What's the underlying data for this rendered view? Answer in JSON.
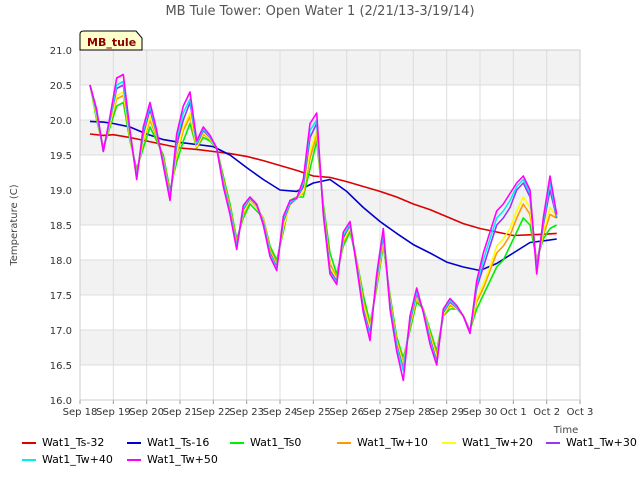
{
  "chart_data": {
    "type": "line",
    "title": "MB Tule Tower: Open Water 1 (2/21/13-3/19/14)",
    "site_label": "MB_tule",
    "xlabel": "Time",
    "ylabel": "Temperature (C)",
    "ylim": [
      16.0,
      21.0
    ],
    "yticks": [
      "16.0",
      "16.5",
      "17.0",
      "17.5",
      "18.0",
      "18.5",
      "19.0",
      "19.5",
      "20.0",
      "20.5",
      "21.0"
    ],
    "xlim": [
      0,
      15
    ],
    "xticks": [
      "Sep 18",
      "Sep 19",
      "Sep 20",
      "Sep 21",
      "Sep 22",
      "Sep 23",
      "Sep 24",
      "Sep 25",
      "Sep 26",
      "Sep 27",
      "Sep 28",
      "Sep 29",
      "Sep 30",
      "Oct 1",
      "Oct 2",
      "Oct 3"
    ],
    "series": [
      {
        "name": "Wat1_Ts-32",
        "color": "#dd0000",
        "x": [
          0.3,
          0.7,
          1.0,
          1.5,
          2.0,
          2.5,
          3.0,
          3.5,
          4.0,
          4.5,
          5.0,
          5.5,
          6.0,
          6.5,
          7.0,
          7.5,
          8.0,
          8.5,
          9.0,
          9.5,
          10.0,
          10.5,
          11.0,
          11.5,
          12.0,
          12.5,
          13.0,
          13.5,
          14.0,
          14.3
        ],
        "values": [
          19.8,
          19.78,
          19.79,
          19.75,
          19.7,
          19.65,
          19.6,
          19.58,
          19.55,
          19.52,
          19.48,
          19.42,
          19.35,
          19.28,
          19.2,
          19.18,
          19.12,
          19.05,
          18.98,
          18.9,
          18.8,
          18.72,
          18.62,
          18.52,
          18.45,
          18.4,
          18.35,
          18.36,
          18.37,
          18.38
        ]
      },
      {
        "name": "Wat1_Ts-16",
        "color": "#0000cc",
        "x": [
          0.3,
          0.7,
          1.0,
          1.5,
          2.0,
          2.5,
          3.0,
          3.5,
          4.0,
          4.5,
          5.0,
          5.5,
          6.0,
          6.5,
          7.0,
          7.5,
          8.0,
          8.5,
          9.0,
          9.5,
          10.0,
          10.5,
          11.0,
          11.5,
          12.0,
          12.5,
          13.0,
          13.5,
          14.0,
          14.3
        ],
        "values": [
          19.98,
          19.97,
          19.95,
          19.9,
          19.8,
          19.72,
          19.68,
          19.65,
          19.62,
          19.5,
          19.32,
          19.15,
          19.0,
          18.98,
          19.1,
          19.15,
          18.98,
          18.75,
          18.55,
          18.38,
          18.22,
          18.1,
          17.97,
          17.9,
          17.85,
          17.95,
          18.1,
          18.25,
          18.28,
          18.3
        ]
      },
      {
        "name": "Wat1_Ts0",
        "color": "#00ee00",
        "x": [
          0.3,
          0.5,
          0.7,
          0.9,
          1.1,
          1.3,
          1.5,
          1.7,
          1.9,
          2.1,
          2.3,
          2.5,
          2.7,
          2.9,
          3.1,
          3.3,
          3.5,
          3.7,
          3.9,
          4.1,
          4.3,
          4.5,
          4.7,
          4.9,
          5.1,
          5.3,
          5.5,
          5.7,
          5.9,
          6.1,
          6.3,
          6.5,
          6.7,
          6.9,
          7.1,
          7.3,
          7.5,
          7.7,
          7.9,
          8.1,
          8.3,
          8.5,
          8.7,
          8.9,
          9.1,
          9.3,
          9.5,
          9.7,
          9.9,
          10.1,
          10.3,
          10.5,
          10.7,
          10.9,
          11.1,
          11.3,
          11.5,
          11.7,
          11.9,
          12.1,
          12.3,
          12.5,
          12.7,
          12.9,
          13.1,
          13.3,
          13.5,
          13.7,
          13.9,
          14.1,
          14.3
        ],
        "values": [
          20.5,
          20.0,
          19.6,
          19.9,
          20.2,
          20.25,
          19.7,
          19.3,
          19.6,
          19.9,
          19.7,
          19.5,
          19.0,
          19.4,
          19.7,
          19.95,
          19.6,
          19.75,
          19.7,
          19.6,
          19.2,
          18.8,
          18.3,
          18.6,
          18.8,
          18.7,
          18.6,
          18.2,
          18.0,
          18.4,
          18.85,
          18.9,
          18.9,
          19.3,
          19.7,
          18.8,
          18.1,
          17.8,
          18.2,
          18.4,
          18.0,
          17.5,
          17.1,
          17.6,
          18.2,
          17.5,
          16.9,
          16.6,
          17.0,
          17.4,
          17.3,
          17.0,
          16.7,
          17.2,
          17.3,
          17.3,
          17.2,
          17.0,
          17.3,
          17.5,
          17.7,
          17.9,
          18.0,
          18.2,
          18.4,
          18.6,
          18.5,
          18.0,
          18.3,
          18.45,
          18.5
        ]
      },
      {
        "name": "Wat1_Tw+10",
        "color": "#ff9900",
        "x": [
          0.3,
          0.5,
          0.7,
          0.9,
          1.1,
          1.3,
          1.5,
          1.7,
          1.9,
          2.1,
          2.3,
          2.5,
          2.7,
          2.9,
          3.1,
          3.3,
          3.5,
          3.7,
          3.9,
          4.1,
          4.3,
          4.5,
          4.7,
          4.9,
          5.1,
          5.3,
          5.5,
          5.7,
          5.9,
          6.1,
          6.3,
          6.5,
          6.7,
          6.9,
          7.1,
          7.3,
          7.5,
          7.7,
          7.9,
          8.1,
          8.3,
          8.5,
          8.7,
          8.9,
          9.1,
          9.3,
          9.5,
          9.7,
          9.9,
          10.1,
          10.3,
          10.5,
          10.7,
          10.9,
          11.1,
          11.3,
          11.5,
          11.7,
          11.9,
          12.1,
          12.3,
          12.5,
          12.7,
          12.9,
          13.1,
          13.3,
          13.5,
          13.7,
          13.9,
          14.1,
          14.3
        ],
        "values": [
          20.5,
          20.05,
          19.6,
          19.95,
          20.3,
          20.35,
          19.75,
          19.25,
          19.7,
          20.0,
          19.75,
          19.45,
          18.95,
          19.5,
          19.85,
          20.05,
          19.6,
          19.8,
          19.72,
          19.6,
          19.15,
          18.75,
          18.25,
          18.65,
          18.85,
          18.75,
          18.6,
          18.15,
          17.95,
          18.45,
          18.8,
          18.9,
          18.95,
          19.45,
          19.8,
          18.75,
          17.95,
          17.75,
          18.25,
          18.45,
          18.0,
          17.4,
          17.05,
          17.65,
          18.25,
          17.45,
          16.85,
          16.55,
          17.05,
          17.45,
          17.3,
          16.95,
          16.65,
          17.2,
          17.35,
          17.3,
          17.2,
          17.0,
          17.4,
          17.6,
          17.85,
          18.1,
          18.2,
          18.35,
          18.6,
          18.8,
          18.65,
          18.0,
          18.35,
          18.65,
          18.6
        ]
      },
      {
        "name": "Wat1_Tw+20",
        "color": "#ffff00",
        "x": [
          0.3,
          0.5,
          0.7,
          0.9,
          1.1,
          1.3,
          1.5,
          1.7,
          1.9,
          2.1,
          2.3,
          2.5,
          2.7,
          2.9,
          3.1,
          3.3,
          3.5,
          3.7,
          3.9,
          4.1,
          4.3,
          4.5,
          4.7,
          4.9,
          5.1,
          5.3,
          5.5,
          5.7,
          5.9,
          6.1,
          6.3,
          6.5,
          6.7,
          6.9,
          7.1,
          7.3,
          7.5,
          7.7,
          7.9,
          8.1,
          8.3,
          8.5,
          8.7,
          8.9,
          9.1,
          9.3,
          9.5,
          9.7,
          9.9,
          10.1,
          10.3,
          10.5,
          10.7,
          10.9,
          11.1,
          11.3,
          11.5,
          11.7,
          11.9,
          12.1,
          12.3,
          12.5,
          12.7,
          12.9,
          13.1,
          13.3,
          13.5,
          13.7,
          13.9,
          14.1,
          14.3
        ],
        "values": [
          20.5,
          20.05,
          19.58,
          19.95,
          20.35,
          20.4,
          19.75,
          19.22,
          19.72,
          20.05,
          19.78,
          19.42,
          18.92,
          19.55,
          19.9,
          20.1,
          19.62,
          19.82,
          19.73,
          19.6,
          19.12,
          18.72,
          18.22,
          18.68,
          18.86,
          18.76,
          18.58,
          18.12,
          17.92,
          18.48,
          18.78,
          18.88,
          18.98,
          19.55,
          19.85,
          18.72,
          17.9,
          17.72,
          18.28,
          18.46,
          17.98,
          17.36,
          17.02,
          17.68,
          18.28,
          17.42,
          16.82,
          16.5,
          17.08,
          17.48,
          17.3,
          16.92,
          16.6,
          17.22,
          17.38,
          17.3,
          17.2,
          17.0,
          17.45,
          17.65,
          17.9,
          18.2,
          18.3,
          18.45,
          18.7,
          18.9,
          18.75,
          17.95,
          18.4,
          18.75,
          18.62
        ]
      },
      {
        "name": "Wat1_Tw+30",
        "color": "#9933ff",
        "x": [
          0.3,
          0.5,
          0.7,
          0.9,
          1.1,
          1.3,
          1.5,
          1.7,
          1.9,
          2.1,
          2.3,
          2.5,
          2.7,
          2.9,
          3.1,
          3.3,
          3.5,
          3.7,
          3.9,
          4.1,
          4.3,
          4.5,
          4.7,
          4.9,
          5.1,
          5.3,
          5.5,
          5.7,
          5.9,
          6.1,
          6.3,
          6.5,
          6.7,
          6.9,
          7.1,
          7.3,
          7.5,
          7.7,
          7.9,
          8.1,
          8.3,
          8.5,
          8.7,
          8.9,
          9.1,
          9.3,
          9.5,
          9.7,
          9.9,
          10.1,
          10.3,
          10.5,
          10.7,
          10.9,
          11.1,
          11.3,
          11.5,
          11.7,
          11.9,
          12.1,
          12.3,
          12.5,
          12.7,
          12.9,
          13.1,
          13.3,
          13.5,
          13.7,
          13.9,
          14.1,
          14.3
        ],
        "values": [
          20.5,
          20.1,
          19.56,
          20.0,
          20.45,
          20.5,
          19.8,
          19.2,
          19.8,
          20.15,
          19.8,
          19.4,
          18.9,
          19.65,
          20.0,
          20.25,
          19.65,
          19.85,
          19.75,
          19.6,
          19.1,
          18.7,
          18.2,
          18.72,
          18.88,
          18.78,
          18.55,
          18.1,
          17.9,
          18.55,
          18.8,
          18.88,
          19.05,
          19.75,
          19.95,
          18.7,
          17.85,
          17.7,
          18.32,
          18.5,
          17.95,
          17.3,
          16.95,
          17.72,
          18.35,
          17.38,
          16.78,
          16.45,
          17.12,
          17.52,
          17.28,
          16.88,
          16.55,
          17.25,
          17.4,
          17.32,
          17.2,
          16.98,
          17.6,
          17.9,
          18.2,
          18.5,
          18.6,
          18.75,
          19.0,
          19.1,
          18.9,
          17.9,
          18.5,
          19.0,
          18.6
        ]
      },
      {
        "name": "Wat1_Tw+40",
        "color": "#00eeee",
        "x": [
          0.3,
          0.5,
          0.7,
          0.9,
          1.1,
          1.3,
          1.5,
          1.7,
          1.9,
          2.1,
          2.3,
          2.5,
          2.7,
          2.9,
          3.1,
          3.3,
          3.5,
          3.7,
          3.9,
          4.1,
          4.3,
          4.5,
          4.7,
          4.9,
          5.1,
          5.3,
          5.5,
          5.7,
          5.9,
          6.1,
          6.3,
          6.5,
          6.7,
          6.9,
          7.1,
          7.3,
          7.5,
          7.7,
          7.9,
          8.1,
          8.3,
          8.5,
          8.7,
          8.9,
          9.1,
          9.3,
          9.5,
          9.7,
          9.9,
          10.1,
          10.3,
          10.5,
          10.7,
          10.9,
          11.1,
          11.3,
          11.5,
          11.7,
          11.9,
          12.1,
          12.3,
          12.5,
          12.7,
          12.9,
          13.1,
          13.3,
          13.5,
          13.7,
          13.9,
          14.1,
          14.3
        ],
        "values": [
          20.5,
          20.12,
          19.55,
          20.02,
          20.5,
          20.55,
          19.82,
          19.18,
          19.85,
          20.2,
          19.82,
          19.38,
          18.88,
          19.72,
          20.1,
          20.3,
          19.67,
          19.87,
          19.76,
          19.6,
          19.08,
          18.68,
          18.18,
          18.74,
          18.89,
          18.79,
          18.53,
          18.08,
          17.88,
          18.58,
          18.82,
          18.88,
          19.1,
          19.85,
          20.0,
          18.68,
          17.82,
          17.68,
          18.35,
          18.52,
          17.93,
          17.27,
          16.92,
          17.75,
          18.38,
          17.35,
          16.75,
          16.42,
          17.15,
          17.55,
          17.27,
          16.85,
          16.52,
          17.27,
          17.42,
          17.33,
          17.2,
          16.96,
          17.65,
          18.0,
          18.3,
          18.6,
          18.7,
          18.85,
          19.05,
          19.15,
          18.95,
          17.85,
          18.55,
          19.1,
          18.62
        ]
      },
      {
        "name": "Wat1_Tw+50",
        "color": "#ff00ff",
        "x": [
          0.3,
          0.5,
          0.7,
          0.9,
          1.1,
          1.3,
          1.5,
          1.7,
          1.9,
          2.1,
          2.3,
          2.5,
          2.7,
          2.9,
          3.1,
          3.3,
          3.5,
          3.7,
          3.9,
          4.1,
          4.3,
          4.5,
          4.7,
          4.9,
          5.1,
          5.3,
          5.5,
          5.7,
          5.9,
          6.1,
          6.3,
          6.5,
          6.7,
          6.9,
          7.1,
          7.3,
          7.5,
          7.7,
          7.9,
          8.1,
          8.3,
          8.5,
          8.7,
          8.9,
          9.1,
          9.3,
          9.5,
          9.7,
          9.9,
          10.1,
          10.3,
          10.5,
          10.7,
          10.9,
          11.1,
          11.3,
          11.5,
          11.7,
          11.9,
          12.1,
          12.3,
          12.5,
          12.7,
          12.9,
          13.1,
          13.3,
          13.5,
          13.7,
          13.9,
          14.1,
          14.3
        ],
        "values": [
          20.5,
          20.15,
          19.55,
          20.05,
          20.6,
          20.65,
          19.85,
          19.15,
          19.9,
          20.25,
          19.85,
          19.35,
          18.85,
          19.8,
          20.2,
          20.4,
          19.7,
          19.9,
          19.78,
          19.6,
          19.05,
          18.65,
          18.15,
          18.78,
          18.9,
          18.8,
          18.5,
          18.05,
          17.85,
          18.62,
          18.85,
          18.88,
          19.15,
          19.95,
          20.1,
          18.65,
          17.8,
          17.65,
          18.4,
          18.55,
          17.9,
          17.25,
          16.85,
          17.8,
          18.45,
          17.3,
          16.7,
          16.28,
          17.2,
          17.6,
          17.25,
          16.8,
          16.5,
          17.3,
          17.45,
          17.35,
          17.2,
          16.95,
          17.7,
          18.1,
          18.4,
          18.7,
          18.8,
          18.95,
          19.1,
          19.2,
          19.0,
          17.8,
          18.6,
          19.2,
          18.65
        ]
      }
    ]
  }
}
